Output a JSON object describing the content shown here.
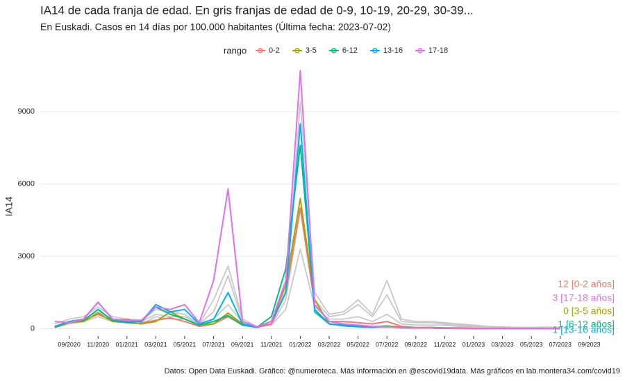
{
  "chart_data": {
    "type": "line",
    "title": "IA14 de cada franja de edad. En gris franjas de edad de 0-9, 10-19, 20-29, 30-39...",
    "subtitle": "En Euskadi. Casos en 14 días por 100.000 habitantes  (Última fecha: 2023-07-02)",
    "y_label": "IA14",
    "legend_title": "rango",
    "caption": "Datos: Open Data Euskadi. Gráfico: @numeroteca. Más información en @escovid19data. Más gráficos en lab.montera34.com/covid19",
    "x": [
      "2020-08",
      "2020-09",
      "2020-10",
      "2020-11",
      "2020-12",
      "2021-01",
      "2021-02",
      "2021-03",
      "2021-04",
      "2021-05",
      "2021-06",
      "2021-07",
      "2021-08",
      "2021-09",
      "2021-10",
      "2021-11",
      "2021-12",
      "2022-01",
      "2022-02",
      "2022-03",
      "2022-04",
      "2022-05",
      "2022-06",
      "2022-07",
      "2022-08",
      "2022-09",
      "2022-10",
      "2022-11",
      "2022-12",
      "2023-01",
      "2023-02",
      "2023-03",
      "2023-04",
      "2023-05",
      "2023-06",
      "2023-07"
    ],
    "xlim": [
      "2020-07",
      "2023-11"
    ],
    "xticks": [
      {
        "value": "2020-09",
        "label": "09/2020"
      },
      {
        "value": "2020-11",
        "label": "11/2020"
      },
      {
        "value": "2021-01",
        "label": "01/2021"
      },
      {
        "value": "2021-03",
        "label": "03/2021"
      },
      {
        "value": "2021-05",
        "label": "05/2021"
      },
      {
        "value": "2021-07",
        "label": "07/2021"
      },
      {
        "value": "2021-09",
        "label": "09/2021"
      },
      {
        "value": "2021-11",
        "label": "11/2021"
      },
      {
        "value": "2022-01",
        "label": "01/2022"
      },
      {
        "value": "2022-03",
        "label": "03/2022"
      },
      {
        "value": "2022-05",
        "label": "05/2022"
      },
      {
        "value": "2022-07",
        "label": "07/2022"
      },
      {
        "value": "2022-09",
        "label": "09/2022"
      },
      {
        "value": "2022-11",
        "label": "11/2022"
      },
      {
        "value": "2023-01",
        "label": "01/2023"
      },
      {
        "value": "2023-03",
        "label": "03/2023"
      },
      {
        "value": "2023-05",
        "label": "05/2023"
      },
      {
        "value": "2023-07",
        "label": "07/2023"
      },
      {
        "value": "2023-09",
        "label": "09/2023"
      }
    ],
    "ylim": [
      -300,
      10900
    ],
    "yticks": [
      0,
      3000,
      6000,
      9000
    ],
    "grid": true,
    "series": [
      {
        "color": "#c8c8c8",
        "values": [
          200,
          400,
          500,
          900,
          500,
          400,
          350,
          800,
          700,
          600,
          200,
          1200,
          2600,
          400,
          100,
          200,
          1600,
          9400,
          1500,
          600,
          700,
          1200,
          600,
          2000,
          400,
          300,
          300,
          250,
          200,
          150,
          100,
          80,
          60,
          50,
          40,
          30
        ]
      },
      {
        "color": "#c8c8c8",
        "values": [
          100,
          300,
          400,
          700,
          400,
          300,
          300,
          600,
          500,
          500,
          200,
          700,
          2200,
          300,
          100,
          150,
          1200,
          5000,
          1200,
          500,
          600,
          1000,
          500,
          1400,
          300,
          250,
          250,
          200,
          150,
          120,
          90,
          70,
          60,
          60,
          70,
          60
        ]
      },
      {
        "color": "#c8c8c8",
        "values": [
          50,
          200,
          300,
          500,
          300,
          250,
          200,
          500,
          400,
          400,
          150,
          400,
          1000,
          250,
          80,
          150,
          800,
          3300,
          900,
          400,
          400,
          500,
          300,
          600,
          200,
          150,
          150,
          150,
          100,
          100,
          80,
          60,
          50,
          50,
          60,
          60
        ]
      },
      {
        "name": "0-2",
        "color": "#f8766d",
        "end_label": "12 [0-2 años]",
        "values": [
          100,
          300,
          350,
          600,
          350,
          400,
          250,
          350,
          450,
          300,
          100,
          200,
          500,
          150,
          50,
          200,
          1500,
          5000,
          1000,
          300,
          300,
          250,
          200,
          300,
          100,
          50,
          60,
          40,
          40,
          30,
          20,
          20,
          15,
          15,
          12,
          12
        ]
      },
      {
        "name": "3-5",
        "color": "#a3a500",
        "end_label": "0 [3-5 años]",
        "values": [
          50,
          250,
          300,
          650,
          300,
          250,
          200,
          300,
          700,
          400,
          150,
          200,
          650,
          200,
          80,
          300,
          1800,
          5400,
          1200,
          200,
          150,
          100,
          80,
          120,
          60,
          40,
          40,
          30,
          20,
          15,
          10,
          8,
          5,
          3,
          2,
          0
        ]
      },
      {
        "name": "6-12",
        "color": "#00bf7d",
        "end_label": "1 [6-12 años]",
        "values": [
          80,
          300,
          350,
          800,
          350,
          250,
          300,
          900,
          600,
          400,
          150,
          300,
          550,
          150,
          60,
          500,
          2500,
          7600,
          800,
          200,
          120,
          80,
          60,
          100,
          40,
          30,
          30,
          20,
          15,
          10,
          8,
          5,
          3,
          2,
          1,
          1
        ]
      },
      {
        "name": "13-16",
        "color": "#00b0f6",
        "end_label": "1 [13-16 años]",
        "values": [
          60,
          300,
          400,
          1100,
          400,
          300,
          300,
          1000,
          700,
          800,
          200,
          400,
          1500,
          200,
          60,
          300,
          1500,
          8500,
          700,
          200,
          150,
          100,
          70,
          80,
          40,
          30,
          30,
          20,
          15,
          10,
          8,
          5,
          3,
          2,
          1,
          1
        ]
      },
      {
        "name": "17-18",
        "color": "#e76bf3",
        "end_label": "3 [17-18 años]",
        "values": [
          300,
          250,
          400,
          1100,
          400,
          350,
          350,
          900,
          800,
          1000,
          250,
          2000,
          5800,
          300,
          80,
          300,
          2000,
          10700,
          1000,
          300,
          200,
          150,
          100,
          80,
          40,
          30,
          30,
          20,
          15,
          10,
          8,
          5,
          4,
          3,
          3,
          3
        ]
      }
    ]
  }
}
